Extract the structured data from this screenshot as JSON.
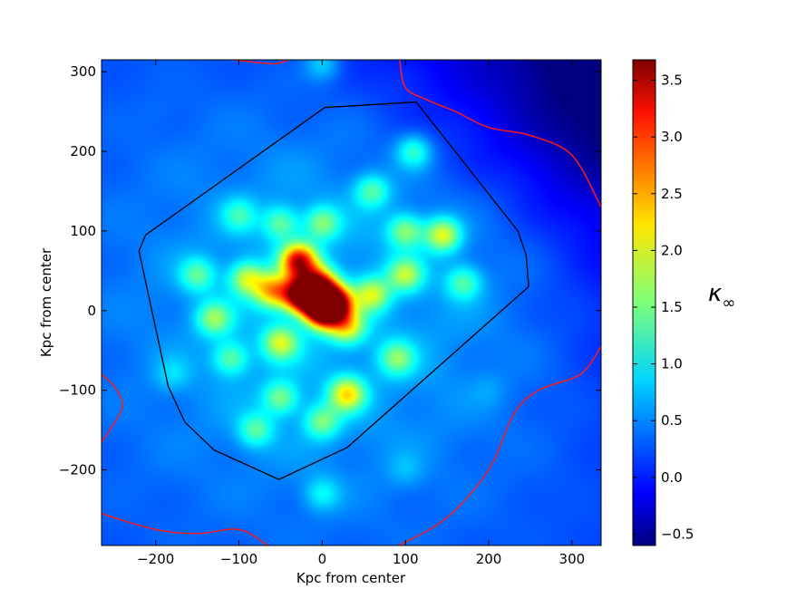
{
  "chart_data": {
    "type": "heatmap",
    "title": "",
    "xlabel": "Kpc from center",
    "ylabel": "Kpc from center",
    "xlim": [
      -265,
      335
    ],
    "ylim": [
      -295,
      315
    ],
    "xticks": [
      -200,
      -100,
      0,
      100,
      200,
      300
    ],
    "yticks": [
      -200,
      -100,
      0,
      100,
      200,
      300
    ],
    "colorbar": {
      "label": "κ∞",
      "label_main": "κ",
      "label_sub": "∞",
      "range": [
        -0.6,
        3.68
      ],
      "ticks": [
        -0.5,
        0.0,
        0.5,
        1.0,
        1.5,
        2.0,
        2.5,
        3.0,
        3.5
      ],
      "tick_labels": [
        "−0.5",
        "0.0",
        "0.5",
        "1.0",
        "1.5",
        "2.0",
        "2.5",
        "3.0",
        "3.5"
      ],
      "colormap": "jet"
    },
    "peaks": [
      {
        "x": 2,
        "y": 0,
        "value": 3.6
      },
      {
        "x": -8,
        "y": 18,
        "value": 3.3
      },
      {
        "x": -28,
        "y": 20,
        "value": 3.0
      },
      {
        "x": 15,
        "y": 10,
        "value": 3.1
      },
      {
        "x": -28,
        "y": 62,
        "value": 3.0
      },
      {
        "x": -5,
        "y": 35,
        "value": 2.2
      },
      {
        "x": -60,
        "y": 25,
        "value": 2.0
      },
      {
        "x": -90,
        "y": 40,
        "value": 1.6
      },
      {
        "x": -130,
        "y": -10,
        "value": 1.4
      },
      {
        "x": -150,
        "y": 45,
        "value": 1.2
      },
      {
        "x": -50,
        "y": -40,
        "value": 1.6
      },
      {
        "x": 30,
        "y": -20,
        "value": 1.7
      },
      {
        "x": 60,
        "y": 20,
        "value": 1.6
      },
      {
        "x": 100,
        "y": 45,
        "value": 1.5
      },
      {
        "x": 145,
        "y": 95,
        "value": 1.8
      },
      {
        "x": 100,
        "y": 100,
        "value": 1.4
      },
      {
        "x": 30,
        "y": -105,
        "value": 1.9
      },
      {
        "x": -50,
        "y": -110,
        "value": 1.3
      },
      {
        "x": -80,
        "y": -150,
        "value": 1.2
      },
      {
        "x": 0,
        "y": -140,
        "value": 1.3
      },
      {
        "x": 0,
        "y": 110,
        "value": 1.3
      },
      {
        "x": -50,
        "y": 110,
        "value": 1.2
      },
      {
        "x": 60,
        "y": 150,
        "value": 1.2
      },
      {
        "x": 110,
        "y": 200,
        "value": 1.2
      },
      {
        "x": -100,
        "y": 120,
        "value": 1.0
      },
      {
        "x": 170,
        "y": 35,
        "value": 1.2
      },
      {
        "x": 90,
        "y": -60,
        "value": 1.3
      },
      {
        "x": -110,
        "y": -60,
        "value": 1.2
      },
      {
        "x": 0,
        "y": 310,
        "value": 0.9
      },
      {
        "x": 0,
        "y": -230,
        "value": 0.9
      },
      {
        "x": 100,
        "y": -200,
        "value": 0.6
      },
      {
        "x": -180,
        "y": -80,
        "value": 0.7
      },
      {
        "x": 200,
        "y": -100,
        "value": 0.5
      },
      {
        "x": -200,
        "y": 250,
        "value": 0.4
      }
    ],
    "outline_polygon": [
      [
        3,
        255
      ],
      [
        113,
        262
      ],
      [
        235,
        100
      ],
      [
        245,
        70
      ],
      [
        248,
        30
      ],
      [
        30,
        -172
      ],
      [
        -52,
        -212
      ],
      [
        -130,
        -175
      ],
      [
        -165,
        -140
      ],
      [
        -185,
        -95
      ],
      [
        -220,
        75
      ],
      [
        -212,
        95
      ],
      [
        3,
        255
      ]
    ],
    "red_contours": [
      [
        [
          -105,
          315
        ],
        [
          -60,
          310
        ],
        [
          -40,
          315
        ]
      ],
      [
        [
          93,
          315
        ],
        [
          100,
          280
        ],
        [
          125,
          265
        ],
        [
          160,
          250
        ],
        [
          200,
          230
        ],
        [
          250,
          220
        ],
        [
          300,
          195
        ],
        [
          335,
          130
        ]
      ],
      [
        [
          -265,
          -80
        ],
        [
          -250,
          -95
        ],
        [
          -240,
          -120
        ],
        [
          -255,
          -150
        ],
        [
          -265,
          -165
        ]
      ],
      [
        [
          -265,
          -255
        ],
        [
          -200,
          -275
        ],
        [
          -150,
          -280
        ],
        [
          -100,
          -275
        ],
        [
          -65,
          -295
        ]
      ],
      [
        [
          92,
          -295
        ],
        [
          150,
          -260
        ],
        [
          200,
          -200
        ],
        [
          230,
          -130
        ],
        [
          260,
          -100
        ],
        [
          310,
          -80
        ],
        [
          335,
          -45
        ]
      ]
    ]
  }
}
